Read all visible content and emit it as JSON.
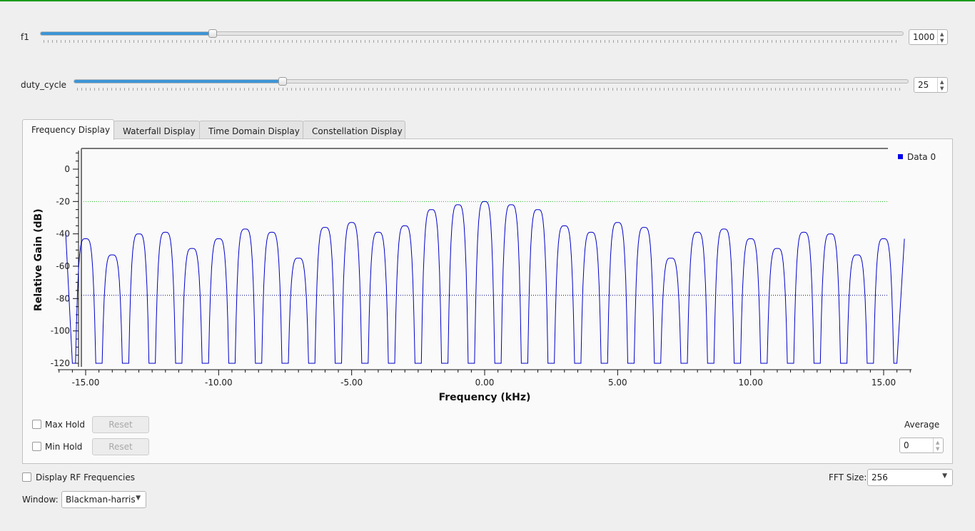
{
  "controls": {
    "f1": {
      "label": "f1",
      "value": "1000",
      "fraction": 0.2
    },
    "duty_cycle": {
      "label": "duty_cycle",
      "value": "25",
      "fraction": 0.25
    }
  },
  "tabs": [
    "Frequency Display",
    "Waterfall Display",
    "Time Domain Display",
    "Constellation Display"
  ],
  "chart_data": {
    "type": "line",
    "xlabel": "Frequency (kHz)",
    "ylabel": "Relative Gain (dB)",
    "xlim": [
      -16.0,
      16.0
    ],
    "ylim": [
      -120,
      10
    ],
    "x_ticks": [
      "-15.00",
      "-10.00",
      "-5.00",
      "0.00",
      "5.00",
      "10.00",
      "15.00"
    ],
    "y_ticks": [
      "0",
      "-20",
      "-40",
      "-60",
      "-80",
      "-100",
      "-120"
    ],
    "legend": "Data 0",
    "series": [
      {
        "name": "Data 0",
        "color": "#0000cc",
        "lobe_centers": [
          -15,
          -14,
          -13,
          -12,
          -11,
          -10,
          -9,
          -8,
          -7,
          -6,
          -5,
          -4,
          -3,
          -2,
          -1,
          0,
          1,
          2,
          3,
          4,
          5,
          6,
          7,
          8,
          9,
          10,
          11,
          12,
          13,
          14,
          15
        ],
        "lobe_peaks": [
          -43,
          -53,
          -40,
          -39,
          -49,
          -43,
          -37,
          -39,
          -55,
          -36,
          -33,
          -39,
          -35,
          -25,
          -22,
          -20,
          -22,
          -25,
          -35,
          -39,
          -33,
          -36,
          -55,
          -39,
          -37,
          -43,
          -49,
          -39,
          -40,
          -53,
          -43
        ]
      }
    ],
    "max_hold_line": -20,
    "threshold_line": -78
  },
  "bottom": {
    "max_hold": "Max Hold",
    "min_hold": "Min Hold",
    "reset": "Reset",
    "average_label": "Average",
    "average_value": "0",
    "display_rf": "Display RF Frequencies",
    "fft_size_label": "FFT Size:",
    "fft_size_value": "256",
    "window_label": "Window:",
    "window_value": "Blackman-harris"
  }
}
